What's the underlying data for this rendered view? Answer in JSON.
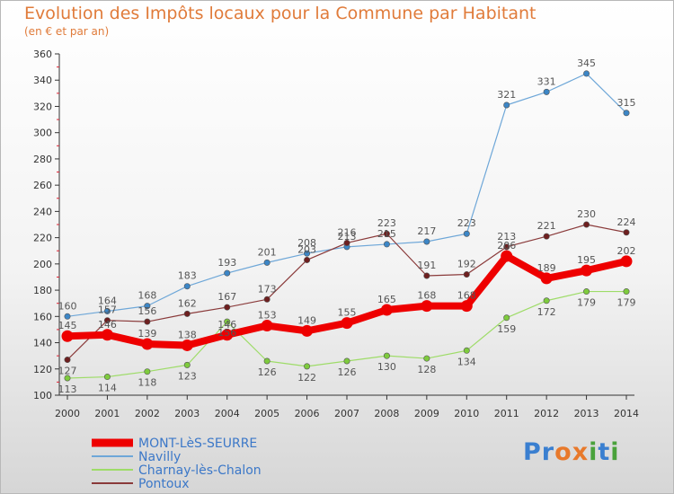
{
  "header": {
    "title": "Evolution des Impôts locaux pour la Commune par Habitant",
    "subtitle": "(en € et par an)"
  },
  "logo": {
    "text": "Proxiti",
    "letters": [
      "P",
      "r",
      "o",
      "x",
      "i",
      "t",
      "i"
    ],
    "colors": [
      "#3a7fd0",
      "#3a7fd0",
      "#e8792b",
      "#e8792b",
      "#4aa23b",
      "#3a7fd0",
      "#4aa23b"
    ]
  },
  "chart_data": {
    "type": "line",
    "title": "Evolution des Impôts locaux pour la Commune par Habitant",
    "subtitle": "(en € et par an)",
    "x": [
      2000,
      2001,
      2002,
      2003,
      2004,
      2005,
      2006,
      2007,
      2008,
      2009,
      2010,
      2011,
      2012,
      2013,
      2014
    ],
    "ylim": [
      100,
      360
    ],
    "yticks": [
      100,
      120,
      140,
      160,
      180,
      200,
      220,
      240,
      260,
      280,
      300,
      320,
      340,
      360
    ],
    "grid": false,
    "legend_position": "bottom-left",
    "series": [
      {
        "name": "MONT-LèS-SEURRE",
        "color": "#ee0000",
        "width": 8,
        "marker_color": "#ee0000",
        "values": [
          145,
          146,
          139,
          138,
          146,
          153,
          149,
          155,
          165,
          168,
          168,
          206,
          189,
          195,
          202
        ]
      },
      {
        "name": "Navilly",
        "color": "#6ea7d8",
        "width": 1.2,
        "marker_color": "#3c86c6",
        "values": [
          160,
          164,
          168,
          183,
          193,
          201,
          208,
          213,
          215,
          217,
          223,
          321,
          331,
          345,
          315
        ]
      },
      {
        "name": "Charnay-lès-Chalon",
        "color": "#9edc68",
        "width": 1.2,
        "marker_color": "#7ecb3d",
        "values": [
          113,
          114,
          118,
          123,
          156,
          126,
          122,
          126,
          130,
          128,
          134,
          159,
          172,
          179,
          179
        ]
      },
      {
        "name": "Pontoux",
        "color": "#8a3a3a",
        "width": 1.2,
        "marker_color": "#6e1f1f",
        "values": [
          127,
          157,
          156,
          162,
          167,
          173,
          203,
          216,
          223,
          191,
          192,
          213,
          221,
          230,
          224
        ]
      }
    ]
  }
}
